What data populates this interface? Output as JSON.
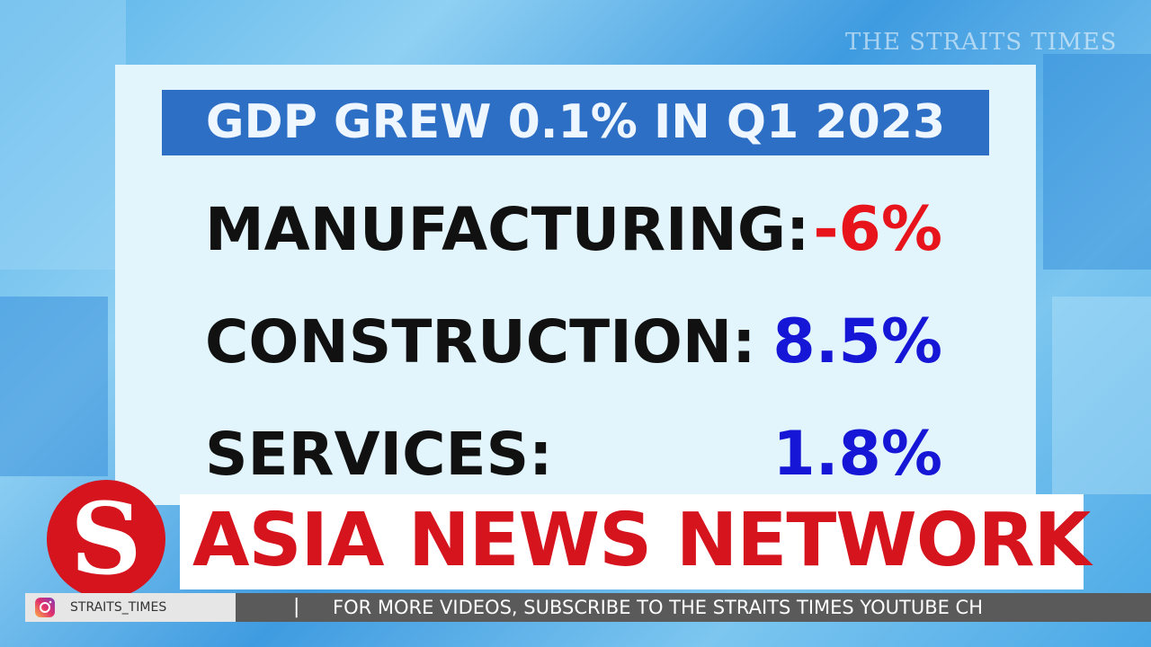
{
  "watermark": "THE STRAITS TIMES",
  "card": {
    "title": "GDP GREW 0.1% IN Q1 2023",
    "rows": [
      {
        "label": "MANUFACTURING:",
        "value": "-6%"
      },
      {
        "label": "CONSTRUCTION:",
        "value": "8.5%"
      },
      {
        "label": "SERVICES:",
        "value": "1.8%"
      }
    ]
  },
  "banner": {
    "logo": "S",
    "title": "ASIA NEWS NETWORK"
  },
  "ticker": {
    "handle": "STRAITS_TIMES",
    "separator": "|",
    "text": "FOR MORE VIDEOS, SUBSCRIBE TO THE STRAITS TIMES YOUTUBE CH"
  }
}
